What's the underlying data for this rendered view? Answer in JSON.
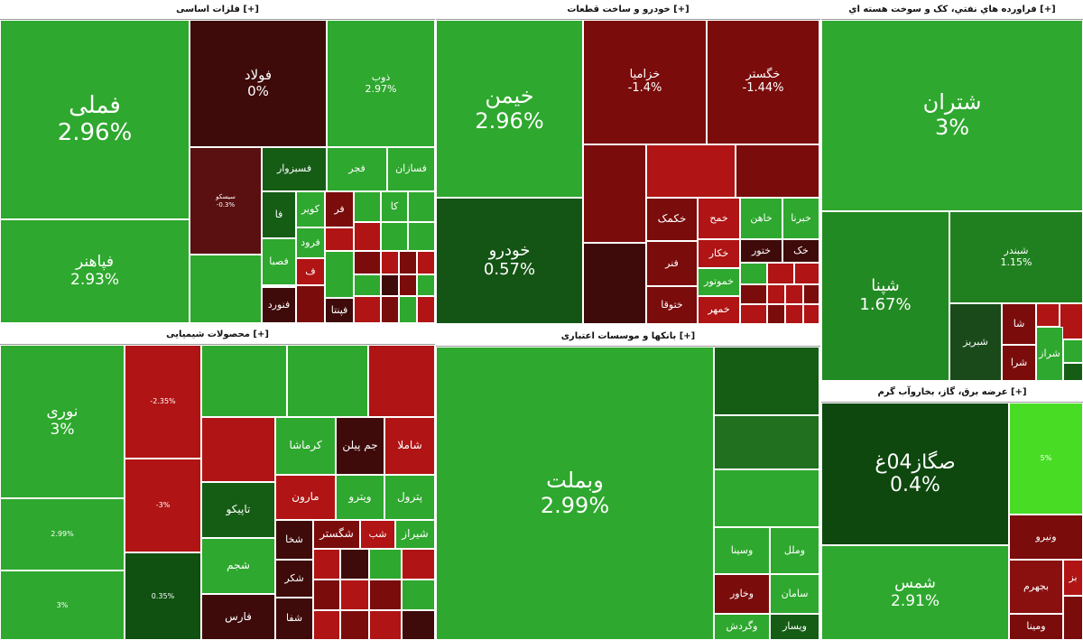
{
  "sectors": [
    {
      "title": "[+] فلزات اساسی",
      "tiles": [
        {
          "name": "فملی",
          "change": "2.96%"
        },
        {
          "name": "فپاهنر",
          "change": "2.93%"
        },
        {
          "name": "فولاد",
          "change": "0%"
        },
        {
          "name": "ذوب",
          "change": "2.97%"
        },
        {
          "name": "سیسکو",
          "change": "-0.3%"
        },
        {
          "name": "فسبزوار"
        },
        {
          "name": "فجر"
        },
        {
          "name": "فسازان"
        },
        {
          "name": "فا"
        },
        {
          "name": "کویر"
        },
        {
          "name": "فر"
        },
        {
          "name": "کا"
        },
        {
          "name": "فرود"
        },
        {
          "name": "فصبا"
        },
        {
          "name": "ف"
        },
        {
          "name": "فنورد"
        },
        {
          "name": "فپنتا"
        }
      ]
    },
    {
      "title": "[+] خودرو و ساخت قطعات",
      "tiles": [
        {
          "name": "خیمن",
          "change": "2.96%"
        },
        {
          "name": "خودرو",
          "change": "0.57%"
        },
        {
          "name": "خزامیا",
          "change": "-1.4%"
        },
        {
          "name": "خگستر",
          "change": "-1.44%"
        },
        {
          "name": "خکمک"
        },
        {
          "name": "خمح"
        },
        {
          "name": "خاهن"
        },
        {
          "name": "خبرنا"
        },
        {
          "name": "فنر"
        },
        {
          "name": "خکار"
        },
        {
          "name": "ختور"
        },
        {
          "name": "خک"
        },
        {
          "name": "ختوقا"
        },
        {
          "name": "خموتور"
        },
        {
          "name": "خمهر"
        }
      ]
    },
    {
      "title": "[+] فراورده هاي نفتي، کک و سوخت هسته اي",
      "tiles": [
        {
          "name": "شتران",
          "change": "3%"
        },
        {
          "name": "شپنا",
          "change": "1.67%"
        },
        {
          "name": "شبندر",
          "change": "1.15%"
        },
        {
          "name": "شبریز"
        },
        {
          "name": "شا"
        },
        {
          "name": "شرا"
        },
        {
          "name": "شراز"
        }
      ]
    },
    {
      "title": "[+] عرضه برق، گاز، بخاروآب گرم",
      "tiles": [
        {
          "name": "صگاز04غ",
          "change": "0.4%"
        },
        {
          "name": "شمس",
          "change": "2.91%"
        },
        {
          "change": "5%"
        },
        {
          "name": "ونیرو"
        },
        {
          "name": "بجهرم"
        },
        {
          "name": "بز"
        },
        {
          "name": "ومینا"
        }
      ]
    },
    {
      "title": "[+] محصولات شیمیایی",
      "tiles": [
        {
          "name": "نوری",
          "change": "3%"
        },
        {
          "change": "2.99%"
        },
        {
          "change": "3%"
        },
        {
          "change": "-2.35%"
        },
        {
          "change": "-3%"
        },
        {
          "change": "0.35%"
        },
        {
          "name": "کرماشا"
        },
        {
          "name": "جم پیلن"
        },
        {
          "name": "شاملا"
        },
        {
          "name": "تاپیکو"
        },
        {
          "name": "مارون"
        },
        {
          "name": "ویترو"
        },
        {
          "name": "پترول"
        },
        {
          "name": "شجم"
        },
        {
          "name": "فارس"
        },
        {
          "name": "شخا"
        },
        {
          "name": "شگستر"
        },
        {
          "name": "شب"
        },
        {
          "name": "شیراز"
        },
        {
          "name": "شکر"
        },
        {
          "name": "شفا"
        }
      ]
    },
    {
      "title": "[+] بانکها و موسسات اعتباری",
      "tiles": [
        {
          "name": "وبملت",
          "change": "2.99%"
        },
        {
          "name": "وسینا"
        },
        {
          "name": "وملل"
        },
        {
          "name": "وخاور"
        },
        {
          "name": "سامان"
        },
        {
          "name": "وگردش"
        },
        {
          "name": "ویسار"
        }
      ]
    }
  ]
}
